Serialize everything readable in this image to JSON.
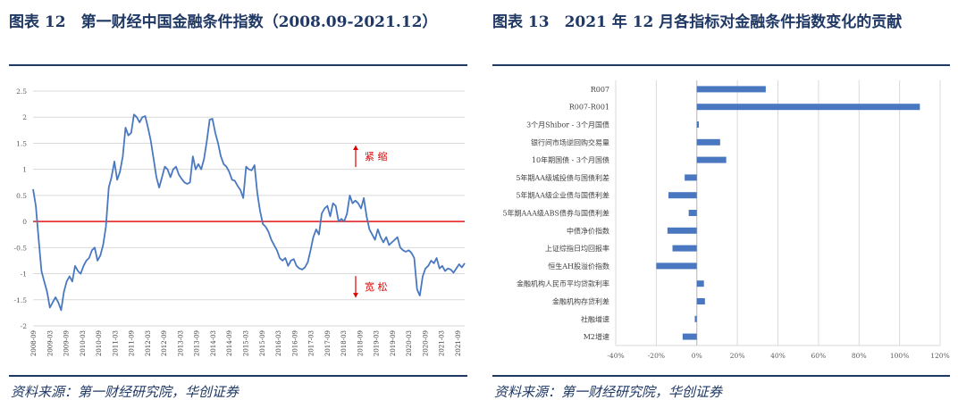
{
  "left": {
    "title": "图表 12　第一财经中国金融条件指数（2008.09-2021.12）",
    "source": "资料来源：第一财经研究院，华创证券"
  },
  "right": {
    "title": "图表 13　2021 年 12 月各指标对金融条件指数变化的贡献",
    "source": "资料来源：第一财经研究院，华创证券"
  },
  "chart_data": [
    {
      "type": "line",
      "title": "",
      "xlabel": "",
      "ylabel": "",
      "ylim": [
        -2,
        2.5
      ],
      "yticks": [
        2.5,
        2,
        1.5,
        1,
        0.5,
        0,
        -0.5,
        -1,
        -1.5,
        -2
      ],
      "ytick_labels": [
        "2.5",
        "2",
        "1.5",
        "1",
        "0.5",
        "0",
        "-0.5",
        "-1",
        "-1.5",
        "-2"
      ],
      "xtick_labels": [
        "2008-09",
        "2009-03",
        "2009-09",
        "2010-03",
        "2010-09",
        "2011-03",
        "2011-09",
        "2012-03",
        "2012-09",
        "2013-03",
        "2013-09",
        "2014-03",
        "2014-09",
        "2015-03",
        "2015-09",
        "2016-03",
        "2016-09",
        "2017-03",
        "2017-09",
        "2018-03",
        "2018-09",
        "2019-03",
        "2019-09",
        "2020-03",
        "2020-09",
        "2021-03",
        "2021-09"
      ],
      "grid": true,
      "reference_line": {
        "y": 0,
        "color": "#e00000"
      },
      "annotations": [
        {
          "text": "紧 缩",
          "y": 1.25,
          "arrow": "up",
          "color": "#e00000"
        },
        {
          "text": "宽 松",
          "y": -1.25,
          "arrow": "down",
          "color": "#e00000"
        }
      ],
      "series": [
        {
          "color": "#4a78c0",
          "values": [
            0.62,
            0.3,
            -0.35,
            -0.95,
            -1.15,
            -1.35,
            -1.65,
            -1.55,
            -1.45,
            -1.55,
            -1.7,
            -1.35,
            -1.15,
            -1.05,
            -1.15,
            -0.85,
            -0.95,
            -1.0,
            -0.85,
            -0.75,
            -0.7,
            -0.55,
            -0.5,
            -0.75,
            -0.65,
            -0.45,
            -0.1,
            0.65,
            0.85,
            1.15,
            0.8,
            0.95,
            1.25,
            1.8,
            1.65,
            1.7,
            2.05,
            2.0,
            1.9,
            2.0,
            2.02,
            1.8,
            1.55,
            1.2,
            0.85,
            0.65,
            0.85,
            1.05,
            1.0,
            0.85,
            1.0,
            1.05,
            0.9,
            0.82,
            0.75,
            0.72,
            0.75,
            1.25,
            1.0,
            1.1,
            1.0,
            1.2,
            1.55,
            1.95,
            1.97,
            1.7,
            1.5,
            1.25,
            1.1,
            1.05,
            0.95,
            0.8,
            0.78,
            0.68,
            0.6,
            0.45,
            1.05,
            1.0,
            0.98,
            1.08,
            0.55,
            0.2,
            -0.05,
            -0.1,
            -0.2,
            -0.35,
            -0.45,
            -0.55,
            -0.7,
            -0.75,
            -0.7,
            -0.85,
            -0.75,
            -0.72,
            -0.85,
            -0.9,
            -0.92,
            -0.88,
            -0.78,
            -0.55,
            -0.3,
            -0.15,
            -0.25,
            0.15,
            0.25,
            0.3,
            0.1,
            0.35,
            0.3,
            0.0,
            0.05,
            0.0,
            0.15,
            0.5,
            0.35,
            0.4,
            0.35,
            0.25,
            0.45,
            0.1,
            -0.15,
            -0.25,
            -0.35,
            -0.15,
            -0.3,
            -0.4,
            -0.3,
            -0.45,
            -0.4,
            -0.35,
            -0.3,
            -0.5,
            -0.55,
            -0.58,
            -0.55,
            -0.6,
            -0.7,
            -1.3,
            -1.42,
            -1.05,
            -0.9,
            -0.85,
            -0.75,
            -0.8,
            -0.7,
            -0.9,
            -0.85,
            -0.95,
            -0.9,
            -0.92,
            -0.98,
            -0.9,
            -0.82,
            -0.88,
            -0.8
          ]
        }
      ]
    },
    {
      "type": "bar",
      "orientation": "horizontal",
      "title": "",
      "xlabel": "",
      "ylabel": "",
      "xlim": [
        -40,
        120
      ],
      "xticks": [
        -40,
        -20,
        0,
        20,
        40,
        60,
        80,
        100,
        120
      ],
      "xtick_labels": [
        "-40%",
        "-20%",
        "0%",
        "20%",
        "40%",
        "60%",
        "80%",
        "100%",
        "120%"
      ],
      "grid": true,
      "color": "#4a78c0",
      "categories": [
        "R007",
        "R007-R001",
        "3个月Shibor - 3个月国债",
        "银行间市场逆回购交易量",
        "10年期国债 - 3个月国债",
        "5年期AA级城投债与国债利差",
        "5年期AA级企业债与国债利差",
        "5年期AAA级ABS债券与国债利差",
        "中债净价指数",
        "上证综指日均回报率",
        "恒生AH股溢价指数",
        "金融机构人民币平均贷款利率",
        "金融机构存贷利差",
        "社融增速",
        "M2增速"
      ],
      "values": [
        34,
        110,
        1,
        11.5,
        14.5,
        -6,
        -14,
        -4,
        -14.5,
        -12,
        -20,
        3.5,
        4,
        -1,
        -7
      ]
    }
  ]
}
